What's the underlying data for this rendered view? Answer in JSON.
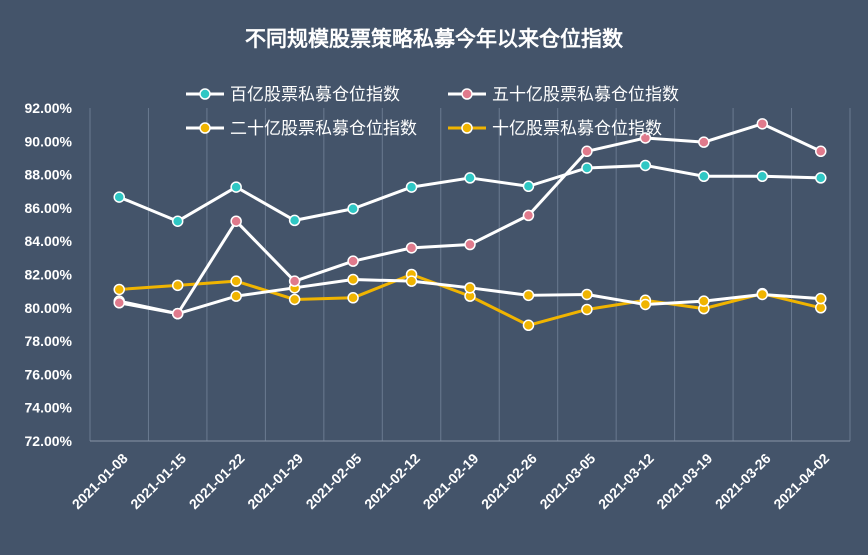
{
  "chart_data": {
    "type": "line",
    "title": "不同规模股票策略私募今年以来仓位指数",
    "xlabel": "",
    "ylabel": "",
    "ylim": [
      72,
      92
    ],
    "ytick_labels": [
      "92.00%",
      "90.00%",
      "88.00%",
      "86.00%",
      "84.00%",
      "82.00%",
      "80.00%",
      "78.00%",
      "76.00%",
      "74.00%",
      "72.00%"
    ],
    "categories": [
      "2021-01-08",
      "2021-01-15",
      "2021-01-22",
      "2021-01-29",
      "2021-02-05",
      "2021-02-12",
      "2021-02-19",
      "2021-02-26",
      "2021-03-05",
      "2021-03-12",
      "2021-03-19",
      "2021-03-26",
      "2021-04-02"
    ],
    "grid": "vertical",
    "legend_position": "top",
    "series": [
      {
        "name": "百亿股票私募仓位指数",
        "line_color": "#ffffff",
        "marker_color": "#2fc7c4",
        "values": [
          86.65,
          85.2,
          87.25,
          85.25,
          85.95,
          87.25,
          87.8,
          87.3,
          88.4,
          88.55,
          87.9,
          87.9,
          87.8
        ]
      },
      {
        "name": "五十亿股票私募仓位指数",
        "line_color": "#ffffff",
        "marker_color": "#e07a8c",
        "values": [
          80.3,
          79.65,
          85.2,
          81.6,
          82.8,
          83.6,
          83.8,
          85.55,
          89.4,
          90.2,
          89.95,
          91.05,
          89.4
        ]
      },
      {
        "name": "二十亿股票私募仓位指数",
        "line_color": "#ffffff",
        "marker_color": "#f0b400",
        "values": [
          80.4,
          79.65,
          80.7,
          81.2,
          81.7,
          81.6,
          81.2,
          80.75,
          80.8,
          80.2,
          80.4,
          80.8,
          80.55
        ]
      },
      {
        "name": "十亿股票私募仓位指数",
        "line_color": "#f0b400",
        "marker_color": "#f0b400",
        "values": [
          81.1,
          81.35,
          81.6,
          80.5,
          80.6,
          82.0,
          80.7,
          78.95,
          79.9,
          80.45,
          79.95,
          80.85,
          80.0
        ]
      }
    ]
  }
}
